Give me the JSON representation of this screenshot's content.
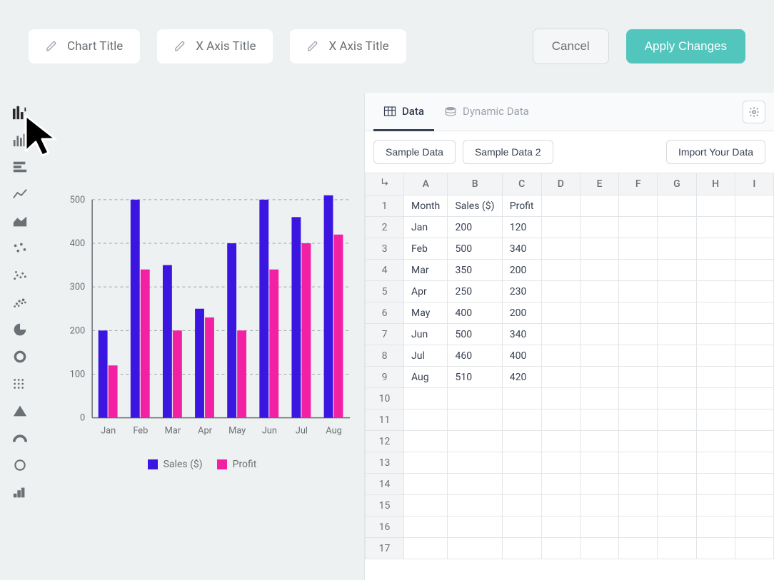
{
  "toolbar": {
    "chart_title_placeholder": "Chart Title",
    "x_axis_1_placeholder": "X Axis Title",
    "x_axis_2_placeholder": "X Axis Title",
    "cancel_label": "Cancel",
    "apply_label": "Apply Changes"
  },
  "sidebar_icons": [
    "grouped-bar",
    "bar",
    "stacked-horizontal",
    "line",
    "area",
    "scatter-sparse",
    "scatter",
    "bubble",
    "pie",
    "donut",
    "dot-matrix",
    "pyramid",
    "gauge",
    "circle",
    "step"
  ],
  "chart": {
    "type": "grouped-bar",
    "categories": [
      "Jan",
      "Feb",
      "Mar",
      "Apr",
      "May",
      "Jun",
      "Jul",
      "Aug"
    ],
    "series": [
      {
        "name": "Sales ($)",
        "color": "#3b16e0",
        "values": [
          200,
          500,
          350,
          250,
          400,
          500,
          460,
          510
        ]
      },
      {
        "name": "Profit",
        "color": "#f220a3",
        "values": [
          120,
          340,
          200,
          230,
          200,
          340,
          400,
          420
        ]
      }
    ],
    "ylim": [
      0,
      500
    ],
    "ytick_step": 100,
    "yticks": [
      0,
      100,
      200,
      300,
      400,
      500
    ],
    "grid_color": "#9ca3af",
    "axis_color": "#6b7075",
    "label_color": "#6b7075",
    "label_fontsize": 13,
    "bar_group_width": 0.62,
    "bar_gap_inner": 0.08,
    "background": "#eef1f2"
  },
  "tabs": {
    "data_label": "Data",
    "dynamic_label": "Dynamic Data"
  },
  "sample_buttons": {
    "sample1": "Sample Data",
    "sample2": "Sample Data 2",
    "import": "Import Your Data"
  },
  "spreadsheet": {
    "columns": [
      "A",
      "B",
      "C",
      "D",
      "E",
      "F",
      "G",
      "H",
      "I"
    ],
    "rows": [
      [
        "Month",
        "Sales ($)",
        "Profit",
        "",
        "",
        "",
        "",
        "",
        ""
      ],
      [
        "Jan",
        "200",
        "120",
        "",
        "",
        "",
        "",
        "",
        ""
      ],
      [
        "Feb",
        "500",
        "340",
        "",
        "",
        "",
        "",
        "",
        ""
      ],
      [
        "Mar",
        "350",
        "200",
        "",
        "",
        "",
        "",
        "",
        ""
      ],
      [
        "Apr",
        "250",
        "230",
        "",
        "",
        "",
        "",
        "",
        ""
      ],
      [
        "May",
        "400",
        "200",
        "",
        "",
        "",
        "",
        "",
        ""
      ],
      [
        "Jun",
        "500",
        "340",
        "",
        "",
        "",
        "",
        "",
        ""
      ],
      [
        "Jul",
        "460",
        "400",
        "",
        "",
        "",
        "",
        "",
        ""
      ],
      [
        "Aug",
        "510",
        "420",
        "",
        "",
        "",
        "",
        "",
        ""
      ],
      [
        "",
        "",
        "",
        "",
        "",
        "",
        "",
        "",
        ""
      ],
      [
        "",
        "",
        "",
        "",
        "",
        "",
        "",
        "",
        ""
      ],
      [
        "",
        "",
        "",
        "",
        "",
        "",
        "",
        "",
        ""
      ],
      [
        "",
        "",
        "",
        "",
        "",
        "",
        "",
        "",
        ""
      ],
      [
        "",
        "",
        "",
        "",
        "",
        "",
        "",
        "",
        ""
      ],
      [
        "",
        "",
        "",
        "",
        "",
        "",
        "",
        "",
        ""
      ],
      [
        "",
        "",
        "",
        "",
        "",
        "",
        "",
        "",
        ""
      ],
      [
        "",
        "",
        "",
        "",
        "",
        "",
        "",
        "",
        ""
      ]
    ]
  }
}
